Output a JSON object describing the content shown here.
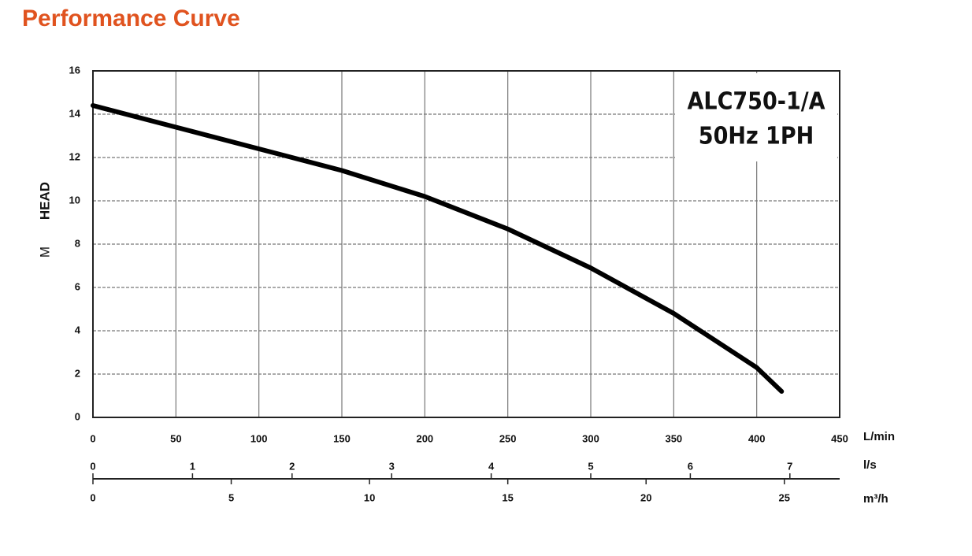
{
  "chart_data": {
    "type": "line",
    "title": "Performance Curve",
    "y_label": "HEAD",
    "y_unit": "M",
    "annotation": [
      "ALC750-1/A",
      "50Hz 1PH"
    ],
    "x": [
      0,
      50,
      100,
      150,
      200,
      250,
      300,
      350,
      400,
      415
    ],
    "values": [
      14.4,
      13.4,
      12.4,
      11.4,
      10.2,
      8.7,
      6.9,
      4.8,
      2.3,
      1.2
    ],
    "color": "#000000",
    "xlim": [
      0,
      450
    ],
    "xticks": [
      0,
      50,
      100,
      150,
      200,
      250,
      300,
      350,
      400,
      450
    ],
    "x_unit": "L/min",
    "ylim": [
      0,
      16
    ],
    "yticks": [
      0,
      2,
      4,
      6,
      8,
      10,
      12,
      14,
      16
    ],
    "secondary_x_axes": [
      {
        "unit": "l/s",
        "xlim": [
          0,
          7.5
        ],
        "xticks": [
          0,
          1,
          2,
          3,
          4,
          5,
          6,
          7
        ]
      },
      {
        "unit": "m³/h",
        "xlim": [
          0,
          27
        ],
        "xticks": [
          0,
          5,
          10,
          15,
          20,
          25
        ]
      }
    ],
    "grid": true
  }
}
